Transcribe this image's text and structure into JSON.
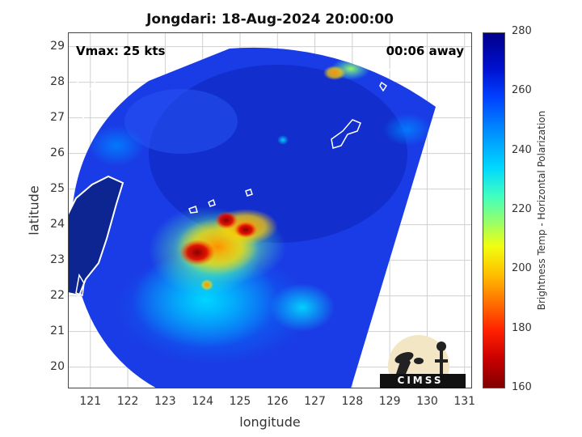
{
  "title": "Jongdari: 18-Aug-2024 20:00:00",
  "vmax_label": "Vmax: 25 kts",
  "time_away_label": "00:06 away",
  "xlabel": "longitude",
  "ylabel": "latitude",
  "colorbar_label": "Brightness Temp - Horizontal Polarization",
  "logo_text": "CIMSS",
  "colors": {
    "background_scan": "#1a3ce6",
    "coastline": "#ffffff",
    "grid": "#d0d0d0"
  },
  "chart_data": {
    "type": "heatmap",
    "title": "Jongdari: 18-Aug-2024 20:00:00",
    "xlabel": "longitude",
    "ylabel": "latitude",
    "xlim": [
      120.4,
      131.2
    ],
    "ylim": [
      19.4,
      29.4
    ],
    "xticks": [
      121,
      122,
      123,
      124,
      125,
      126,
      127,
      128,
      129,
      130,
      131
    ],
    "yticks": [
      20,
      21,
      22,
      23,
      24,
      25,
      26,
      27,
      28,
      29
    ],
    "colorbar": {
      "label": "Brightness Temp - Horizontal Polarization",
      "range": [
        160,
        280
      ],
      "ticks": [
        160,
        180,
        200,
        220,
        240,
        260,
        280
      ]
    },
    "grid": true,
    "features": [
      {
        "lon": 124.6,
        "lat": 24.1,
        "value": 165
      },
      {
        "lon": 123.8,
        "lat": 23.0,
        "value": 170
      },
      {
        "lon": 125.3,
        "lat": 23.8,
        "value": 175
      },
      {
        "lon": 124.9,
        "lat": 23.4,
        "value": 200
      },
      {
        "lon": 123.3,
        "lat": 22.9,
        "value": 215
      },
      {
        "lon": 124.3,
        "lat": 22.0,
        "value": 225
      },
      {
        "lon": 128.5,
        "lat": 28.2,
        "value": 215
      },
      {
        "lon": 126.2,
        "lat": 25.9,
        "value": 235
      }
    ]
  }
}
